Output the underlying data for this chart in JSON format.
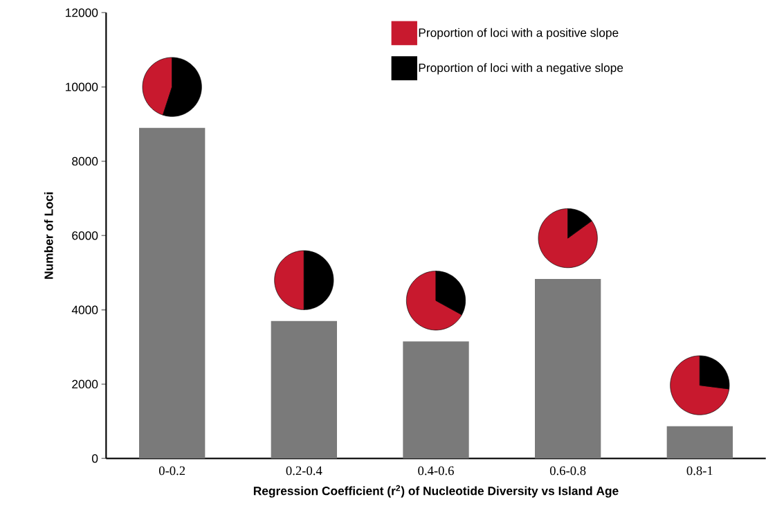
{
  "chart_data": [
    {
      "type": "bar",
      "xlabel": "Regression Coefficient (r$^{2}$) of Nucleotide Diversity vs Island Age",
      "ylabel": "Number of Loci",
      "categories": [
        "0-0.2",
        "0.2-0.4",
        "0.4-0.6",
        "0.6-0.8",
        "0.8-1"
      ],
      "values": [
        8900,
        3700,
        3150,
        4830,
        870
      ],
      "color": "#7a7a7a",
      "ylim": [
        0,
        12000
      ],
      "yticks": [
        0,
        2000,
        4000,
        6000,
        8000,
        10000,
        12000
      ]
    },
    {
      "type": "pie",
      "categories": [
        "Proportion of loci with a positive slope",
        "Proportion of loci with a negative slope"
      ],
      "values": [
        45,
        55
      ],
      "colors": [
        "#c8192e",
        "#000000"
      ],
      "legend": "top right"
    },
    {
      "type": "pie",
      "categories": [
        null,
        null
      ],
      "values": [
        50,
        50
      ],
      "colors": [
        "#c8192e",
        "#000000"
      ]
    },
    {
      "type": "pie",
      "categories": [
        null,
        null
      ],
      "values": [
        67,
        33
      ],
      "colors": [
        "#c8192e",
        "#000000"
      ]
    },
    {
      "type": "pie",
      "categories": [
        null,
        null
      ],
      "values": [
        85,
        15
      ],
      "colors": [
        "#c8192e",
        "#000000"
      ]
    },
    {
      "type": "pie",
      "categories": [
        null,
        null
      ],
      "values": [
        73,
        27
      ],
      "colors": [
        "#c8192e",
        "#000000"
      ]
    }
  ]
}
